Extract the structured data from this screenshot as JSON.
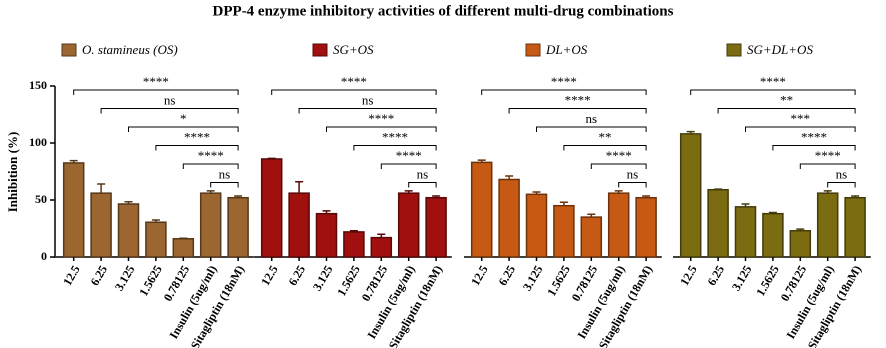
{
  "chart_data": {
    "type": "bar",
    "title": "DPP-4 enzyme inhibitory activities of different multi-drug combinations",
    "y_label": "Inhibition (%)",
    "categories": [
      "12.5",
      "6.25",
      "3.125",
      "1.5625",
      "0.78125",
      "Insulin (5ug/ml)",
      "Sitagliptin (18nM)"
    ],
    "ylim": [
      0,
      150
    ],
    "yticks": [
      0,
      50,
      100,
      150
    ],
    "series": [
      {
        "name": "O. stamineus (OS)",
        "color": "#9c6630",
        "values": [
          82.5,
          56,
          46.5,
          30.5,
          16,
          56,
          52
        ],
        "errors": [
          2,
          8,
          2,
          2,
          0.5,
          2,
          1.5
        ],
        "significance": [
          "****",
          "ns",
          "*",
          "****",
          "****",
          "ns"
        ]
      },
      {
        "name": "SG+OS",
        "color": "#a0100f",
        "values": [
          86,
          56,
          38,
          22,
          17,
          56,
          52
        ],
        "errors": [
          0.5,
          10,
          2.5,
          1,
          3,
          2,
          1.5
        ],
        "significance": [
          "****",
          "ns",
          "****",
          "****",
          "****",
          "ns"
        ]
      },
      {
        "name": "DL+OS",
        "color": "#c65a15",
        "values": [
          83,
          68,
          55,
          45,
          35,
          56,
          52
        ],
        "errors": [
          2,
          3,
          2,
          3,
          2.5,
          2,
          1.5
        ],
        "significance": [
          "****",
          "****",
          "ns",
          "**",
          "****",
          "ns"
        ]
      },
      {
        "name": "SG+DL+OS",
        "color": "#7b6c12",
        "values": [
          108,
          59,
          44,
          38,
          23,
          56,
          52
        ],
        "errors": [
          2,
          0.5,
          2.5,
          1,
          1.5,
          2,
          1.5
        ],
        "significance": [
          "****",
          "**",
          "***",
          "****",
          "****",
          "ns"
        ]
      }
    ]
  }
}
